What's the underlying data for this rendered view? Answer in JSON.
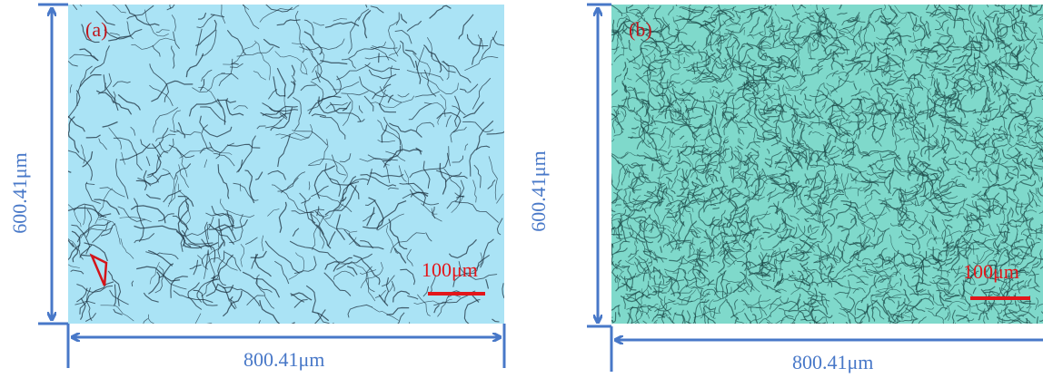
{
  "figure": {
    "panels": [
      {
        "label": "(a)",
        "scale_bar_label": "100μm",
        "width_label": "800.41μm",
        "height_label": "600.41μm",
        "texture_color": "#aae3f5",
        "crack_color": "#1e3240",
        "annotation": "triangle-marker"
      },
      {
        "label": "(b)",
        "scale_bar_label": "100μm",
        "width_label": "800.41μm",
        "height_label": "600.41μm",
        "texture_color": "#7fd9cb",
        "crack_color": "#1c4a48"
      }
    ],
    "colors": {
      "dimension_lines": "#4878c8",
      "labels": "#c0161c",
      "scale_bar": "#e3161a"
    }
  }
}
